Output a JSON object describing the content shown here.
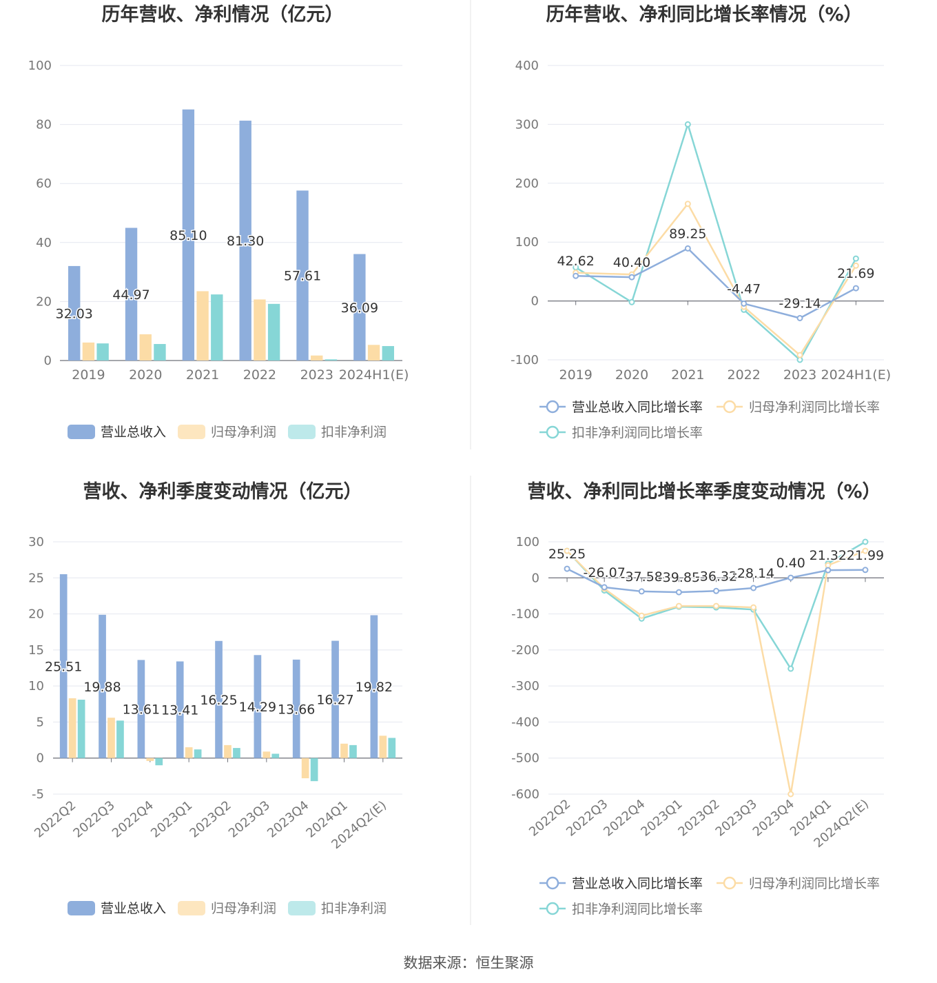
{
  "footer": {
    "source": "数据来源：恒生聚源"
  },
  "colors": {
    "revenue": "#8eaedc",
    "net_profit": "#fcdca6",
    "deducted_profit": "#86d6d6",
    "revenue_legend": "#8eaedc",
    "net_legend": "#fde6bf",
    "deducted_legend": "#bde9ea"
  },
  "chart_data": [
    {
      "id": "annual-amount",
      "type": "bar",
      "title": "历年营收、净利情况（亿元）",
      "categories": [
        "2019",
        "2020",
        "2021",
        "2022",
        "2023",
        "2024H1(E)"
      ],
      "ylim": [
        0,
        100
      ],
      "yticks": [
        0,
        20,
        40,
        60,
        80,
        100
      ],
      "grid": true,
      "legend": "bottom",
      "series": [
        {
          "name": "营业总收入",
          "values": [
            32.03,
            44.97,
            85.1,
            81.3,
            57.61,
            36.09
          ],
          "labels": [
            "32.03",
            "44.97",
            "85.10",
            "81.30",
            "57.61",
            "36.09"
          ]
        },
        {
          "name": "归母净利润",
          "values": [
            6.1,
            8.9,
            23.5,
            20.7,
            1.7,
            5.3
          ]
        },
        {
          "name": "扣非净利润",
          "values": [
            5.8,
            5.6,
            22.4,
            19.2,
            0.4,
            4.9
          ]
        }
      ]
    },
    {
      "id": "annual-growth",
      "type": "line",
      "title": "历年营收、净利同比增长率情况（%）",
      "categories": [
        "2019",
        "2020",
        "2021",
        "2022",
        "2023",
        "2024H1(E)"
      ],
      "ylim": [
        -100,
        400
      ],
      "yticks": [
        -100,
        0,
        100,
        200,
        300,
        400
      ],
      "grid": true,
      "legend": "bottom",
      "series": [
        {
          "name": "营业总收入同比增长率",
          "values": [
            42.62,
            40.4,
            89.25,
            -4.47,
            -29.14,
            21.69
          ],
          "labels": [
            "42.62",
            "40.40",
            "89.25",
            "-4.47",
            "-29.14",
            "21.69"
          ]
        },
        {
          "name": "归母净利润同比增长率",
          "values": [
            48,
            45,
            165,
            -10,
            -92,
            60
          ]
        },
        {
          "name": "扣非净利润同比增长率",
          "values": [
            57,
            -2,
            300,
            -15,
            -100,
            72
          ]
        }
      ]
    },
    {
      "id": "quarter-amount",
      "type": "bar",
      "title": "营收、净利季度变动情况（亿元）",
      "categories": [
        "2022Q2",
        "2022Q3",
        "2022Q4",
        "2023Q1",
        "2023Q2",
        "2023Q3",
        "2023Q4",
        "2024Q1",
        "2024Q2(E)"
      ],
      "ylim": [
        -5,
        30
      ],
      "yticks": [
        -5,
        0,
        5,
        10,
        15,
        20,
        25,
        30
      ],
      "grid": true,
      "legend": "bottom",
      "series": [
        {
          "name": "营业总收入",
          "values": [
            25.51,
            19.88,
            13.61,
            13.41,
            16.25,
            14.29,
            13.66,
            16.27,
            19.82
          ],
          "labels": [
            "25.51",
            "19.88",
            "13.61",
            "13.41",
            "16.25",
            "14.29",
            "13.66",
            "16.27",
            "19.82"
          ]
        },
        {
          "name": "归母净利润",
          "values": [
            8.3,
            5.6,
            -0.4,
            1.5,
            1.8,
            0.9,
            -2.8,
            2.0,
            3.1
          ]
        },
        {
          "name": "扣非净利润",
          "values": [
            8.1,
            5.2,
            -1.0,
            1.2,
            1.4,
            0.6,
            -3.2,
            1.8,
            2.8
          ]
        }
      ]
    },
    {
      "id": "quarter-growth",
      "type": "line",
      "title": "营收、净利同比增长率季度变动情况（%）",
      "categories": [
        "2022Q2",
        "2022Q3",
        "2022Q4",
        "2023Q1",
        "2023Q2",
        "2023Q3",
        "2023Q4",
        "2024Q1",
        "2024Q2(E)"
      ],
      "ylim": [
        -600,
        100
      ],
      "yticks": [
        -600,
        -500,
        -400,
        -300,
        -200,
        -100,
        0,
        100
      ],
      "grid": true,
      "legend": "bottom",
      "series": [
        {
          "name": "营业总收入同比增长率",
          "values": [
            25.25,
            -26.07,
            -37.58,
            -39.85,
            -36.32,
            -28.14,
            0.4,
            21.32,
            21.99
          ],
          "labels": [
            "25.25",
            "-26.07",
            "-37.58",
            "-39.85",
            "-36.32",
            "-28.14",
            "0.40",
            "21.32",
            "21.99"
          ]
        },
        {
          "name": "归母净利润同比增长率",
          "values": [
            75,
            -30,
            -105,
            -78,
            -78,
            -82,
            -600,
            35,
            75
          ]
        },
        {
          "name": "扣非净利润同比增长率",
          "values": [
            75,
            -35,
            -113,
            -80,
            -82,
            -88,
            -252,
            40,
            100
          ]
        }
      ]
    }
  ]
}
